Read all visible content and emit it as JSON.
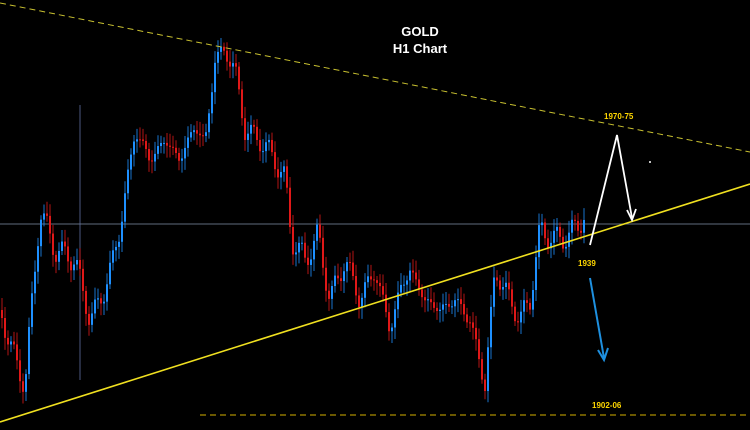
{
  "header": {
    "title": "GOLD",
    "subtitle": "H1 Chart"
  },
  "annotations": [
    "1970-75",
    "1939",
    "1902-06"
  ]
}
